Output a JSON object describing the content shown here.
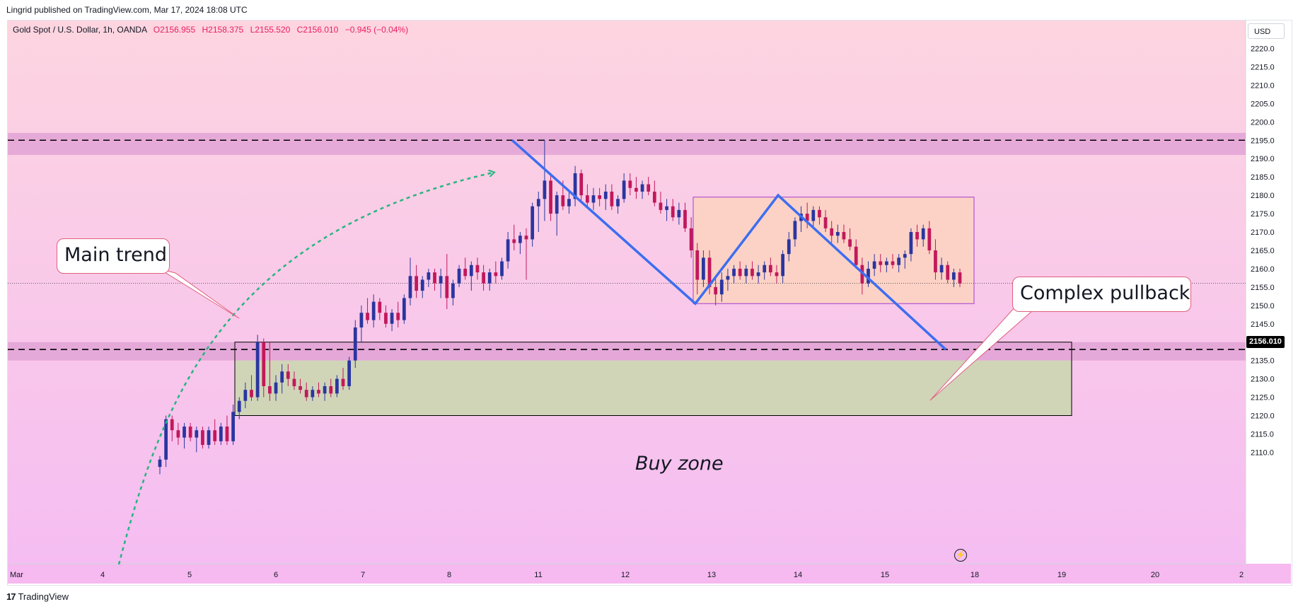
{
  "header": {
    "published_by": "Lingrid published on TradingView.com, Mar 17, 2024 18:08 UTC"
  },
  "legend": {
    "symbol": "Gold Spot / U.S. Dollar, 1h, OANDA",
    "open": "O2156.955",
    "high": "H2158.375",
    "low": "L2155.520",
    "close": "C2156.010",
    "change": "−0.945 (−0.04%)"
  },
  "price_scale": {
    "currency": "USD",
    "last_price_label": "2156.010"
  },
  "footer": {
    "brand": "TradingView"
  },
  "annotations": {
    "main_trend": "Main trend",
    "complex_pullback": "Complex pullback",
    "buy_zone": "Buy zone"
  },
  "colors": {
    "background_top": "#fdd5e0",
    "background_bottom": "#f5bdf2",
    "candle_up": "#2a36a0",
    "candle_down": "#c2185b",
    "resistance_band": "#e2a3d6",
    "buy_zone_fill": "#d0d5b8",
    "pullback_box_fill": "#fcd2c6",
    "pattern_line": "#3d6ef0",
    "trend_arc": "#26b580",
    "last_price_tag": "#000000"
  },
  "chart_data": {
    "type": "candlestick",
    "title": "Gold Spot / U.S. Dollar, 1h, OANDA",
    "y_axis": {
      "ticks": [
        2110,
        2115,
        2120,
        2125,
        2130,
        2135,
        2140,
        2145,
        2150,
        2155,
        2160,
        2165,
        2170,
        2175,
        2180,
        2185,
        2190,
        2195,
        2200,
        2205,
        2210,
        2215,
        2220
      ],
      "ylim": [
        2105,
        2225
      ],
      "position": "right"
    },
    "x_axis": {
      "ticks": [
        "Mar",
        "4",
        "5",
        "6",
        "7",
        "8",
        "11",
        "12",
        "13",
        "14",
        "15",
        "18",
        "19",
        "20",
        "2"
      ]
    },
    "last_price": 2156.01,
    "horizontal_levels": [
      {
        "price": 2195,
        "style": "dashed"
      },
      {
        "price": 2138,
        "style": "dashed"
      }
    ],
    "resistance_zone": {
      "low": 2191,
      "high": 2197
    },
    "support_zone": {
      "low": 2135,
      "high": 2140
    },
    "buy_zone": {
      "low": 2120,
      "high": 2140,
      "start": "Mar 5",
      "end": "Mar 19"
    },
    "pullback_box": {
      "low": 2150.5,
      "high": 2179.5,
      "start": "Mar 12",
      "end": "Mar 15"
    },
    "zigzag_points": [
      {
        "time": "Mar 8",
        "price": 2195
      },
      {
        "time": "Mar 12",
        "price": 2150.5
      },
      {
        "time": "Mar 13",
        "price": 2180
      },
      {
        "time": "Mar 15",
        "price": 2138
      }
    ],
    "candles": [
      {
        "o": 2106,
        "h": 2109,
        "l": 2104,
        "c": 2108
      },
      {
        "o": 2108,
        "h": 2120,
        "l": 2106,
        "c": 2119
      },
      {
        "o": 2119,
        "h": 2120,
        "l": 2113,
        "c": 2116
      },
      {
        "o": 2116,
        "h": 2118,
        "l": 2112,
        "c": 2114
      },
      {
        "o": 2114,
        "h": 2118,
        "l": 2111,
        "c": 2117
      },
      {
        "o": 2117,
        "h": 2118,
        "l": 2113,
        "c": 2114
      },
      {
        "o": 2114,
        "h": 2117,
        "l": 2110,
        "c": 2116
      },
      {
        "o": 2116,
        "h": 2117,
        "l": 2111,
        "c": 2112
      },
      {
        "o": 2112,
        "h": 2117,
        "l": 2111,
        "c": 2116
      },
      {
        "o": 2116,
        "h": 2119,
        "l": 2112,
        "c": 2113
      },
      {
        "o": 2113,
        "h": 2118,
        "l": 2112,
        "c": 2117
      },
      {
        "o": 2117,
        "h": 2120,
        "l": 2112,
        "c": 2113
      },
      {
        "o": 2113,
        "h": 2123,
        "l": 2112,
        "c": 2121
      },
      {
        "o": 2121,
        "h": 2125,
        "l": 2119,
        "c": 2124
      },
      {
        "o": 2124,
        "h": 2129,
        "l": 2122,
        "c": 2127
      },
      {
        "o": 2127,
        "h": 2131,
        "l": 2124,
        "c": 2125
      },
      {
        "o": 2125,
        "h": 2142,
        "l": 2124,
        "c": 2140
      },
      {
        "o": 2140,
        "h": 2141,
        "l": 2125,
        "c": 2128
      },
      {
        "o": 2128,
        "h": 2140,
        "l": 2124,
        "c": 2126
      },
      {
        "o": 2126,
        "h": 2131,
        "l": 2124,
        "c": 2129
      },
      {
        "o": 2129,
        "h": 2134,
        "l": 2126,
        "c": 2132
      },
      {
        "o": 2132,
        "h": 2134,
        "l": 2128,
        "c": 2130
      },
      {
        "o": 2130,
        "h": 2132,
        "l": 2127,
        "c": 2128
      },
      {
        "o": 2128,
        "h": 2130,
        "l": 2126,
        "c": 2127
      },
      {
        "o": 2127,
        "h": 2129,
        "l": 2124,
        "c": 2125
      },
      {
        "o": 2125,
        "h": 2128,
        "l": 2124,
        "c": 2127
      },
      {
        "o": 2127,
        "h": 2129,
        "l": 2125,
        "c": 2126
      },
      {
        "o": 2126,
        "h": 2129,
        "l": 2124,
        "c": 2128
      },
      {
        "o": 2128,
        "h": 2130,
        "l": 2125,
        "c": 2126
      },
      {
        "o": 2126,
        "h": 2131,
        "l": 2125,
        "c": 2130
      },
      {
        "o": 2130,
        "h": 2133,
        "l": 2127,
        "c": 2128
      },
      {
        "o": 2128,
        "h": 2136,
        "l": 2127,
        "c": 2135
      },
      {
        "o": 2135,
        "h": 2146,
        "l": 2133,
        "c": 2144
      },
      {
        "o": 2144,
        "h": 2150,
        "l": 2140,
        "c": 2148
      },
      {
        "o": 2148,
        "h": 2152,
        "l": 2145,
        "c": 2146
      },
      {
        "o": 2146,
        "h": 2153,
        "l": 2144,
        "c": 2151
      },
      {
        "o": 2151,
        "h": 2152,
        "l": 2146,
        "c": 2148
      },
      {
        "o": 2148,
        "h": 2150,
        "l": 2144,
        "c": 2145
      },
      {
        "o": 2145,
        "h": 2149,
        "l": 2143,
        "c": 2148
      },
      {
        "o": 2148,
        "h": 2151,
        "l": 2144,
        "c": 2146
      },
      {
        "o": 2146,
        "h": 2153,
        "l": 2145,
        "c": 2152
      },
      {
        "o": 2152,
        "h": 2163,
        "l": 2150,
        "c": 2158
      },
      {
        "o": 2158,
        "h": 2161,
        "l": 2152,
        "c": 2154
      },
      {
        "o": 2154,
        "h": 2158,
        "l": 2152,
        "c": 2157
      },
      {
        "o": 2157,
        "h": 2160,
        "l": 2155,
        "c": 2159
      },
      {
        "o": 2159,
        "h": 2160,
        "l": 2154,
        "c": 2156
      },
      {
        "o": 2156,
        "h": 2160,
        "l": 2152,
        "c": 2158
      },
      {
        "o": 2158,
        "h": 2164,
        "l": 2149,
        "c": 2152
      },
      {
        "o": 2152,
        "h": 2157,
        "l": 2150,
        "c": 2156
      },
      {
        "o": 2156,
        "h": 2161,
        "l": 2155,
        "c": 2160
      },
      {
        "o": 2160,
        "h": 2163,
        "l": 2157,
        "c": 2158
      },
      {
        "o": 2158,
        "h": 2162,
        "l": 2154,
        "c": 2161
      },
      {
        "o": 2161,
        "h": 2163,
        "l": 2157,
        "c": 2159
      },
      {
        "o": 2159,
        "h": 2161,
        "l": 2154,
        "c": 2156
      },
      {
        "o": 2156,
        "h": 2160,
        "l": 2154,
        "c": 2159
      },
      {
        "o": 2159,
        "h": 2162,
        "l": 2156,
        "c": 2158
      },
      {
        "o": 2158,
        "h": 2163,
        "l": 2157,
        "c": 2162
      },
      {
        "o": 2162,
        "h": 2170,
        "l": 2160,
        "c": 2168
      },
      {
        "o": 2168,
        "h": 2172,
        "l": 2165,
        "c": 2167
      },
      {
        "o": 2167,
        "h": 2170,
        "l": 2164,
        "c": 2169
      },
      {
        "o": 2169,
        "h": 2171,
        "l": 2157,
        "c": 2168
      },
      {
        "o": 2168,
        "h": 2178,
        "l": 2166,
        "c": 2177
      },
      {
        "o": 2177,
        "h": 2181,
        "l": 2170,
        "c": 2179
      },
      {
        "o": 2179,
        "h": 2195,
        "l": 2173,
        "c": 2184
      },
      {
        "o": 2184,
        "h": 2186,
        "l": 2173,
        "c": 2175
      },
      {
        "o": 2175,
        "h": 2181,
        "l": 2169,
        "c": 2180
      },
      {
        "o": 2180,
        "h": 2184,
        "l": 2176,
        "c": 2177
      },
      {
        "o": 2177,
        "h": 2181,
        "l": 2175,
        "c": 2179
      },
      {
        "o": 2179,
        "h": 2188,
        "l": 2177,
        "c": 2186
      },
      {
        "o": 2186,
        "h": 2187,
        "l": 2178,
        "c": 2180
      },
      {
        "o": 2180,
        "h": 2183,
        "l": 2177,
        "c": 2178
      },
      {
        "o": 2178,
        "h": 2182,
        "l": 2176,
        "c": 2180
      },
      {
        "o": 2180,
        "h": 2182,
        "l": 2177,
        "c": 2179
      },
      {
        "o": 2179,
        "h": 2183,
        "l": 2176,
        "c": 2181
      },
      {
        "o": 2181,
        "h": 2183,
        "l": 2176,
        "c": 2177
      },
      {
        "o": 2177,
        "h": 2180,
        "l": 2175,
        "c": 2179
      },
      {
        "o": 2179,
        "h": 2186,
        "l": 2178,
        "c": 2184
      },
      {
        "o": 2184,
        "h": 2186,
        "l": 2180,
        "c": 2182
      },
      {
        "o": 2182,
        "h": 2185,
        "l": 2179,
        "c": 2181
      },
      {
        "o": 2181,
        "h": 2184,
        "l": 2179,
        "c": 2183
      },
      {
        "o": 2183,
        "h": 2185,
        "l": 2180,
        "c": 2181
      },
      {
        "o": 2181,
        "h": 2184,
        "l": 2177,
        "c": 2178
      },
      {
        "o": 2178,
        "h": 2181,
        "l": 2175,
        "c": 2176
      },
      {
        "o": 2176,
        "h": 2179,
        "l": 2173,
        "c": 2177
      },
      {
        "o": 2177,
        "h": 2179,
        "l": 2173,
        "c": 2174
      },
      {
        "o": 2174,
        "h": 2178,
        "l": 2172,
        "c": 2176
      },
      {
        "o": 2176,
        "h": 2178,
        "l": 2170,
        "c": 2171
      },
      {
        "o": 2171,
        "h": 2174,
        "l": 2163,
        "c": 2165
      },
      {
        "o": 2165,
        "h": 2167,
        "l": 2153,
        "c": 2157
      },
      {
        "o": 2157,
        "h": 2165,
        "l": 2155,
        "c": 2163
      },
      {
        "o": 2163,
        "h": 2165,
        "l": 2153,
        "c": 2155
      },
      {
        "o": 2155,
        "h": 2158,
        "l": 2150,
        "c": 2153
      },
      {
        "o": 2153,
        "h": 2159,
        "l": 2151,
        "c": 2157
      },
      {
        "o": 2157,
        "h": 2160,
        "l": 2154,
        "c": 2158
      },
      {
        "o": 2158,
        "h": 2161,
        "l": 2156,
        "c": 2160
      },
      {
        "o": 2160,
        "h": 2162,
        "l": 2157,
        "c": 2158
      },
      {
        "o": 2158,
        "h": 2161,
        "l": 2156,
        "c": 2160
      },
      {
        "o": 2160,
        "h": 2162,
        "l": 2157,
        "c": 2158
      },
      {
        "o": 2158,
        "h": 2161,
        "l": 2156,
        "c": 2159
      },
      {
        "o": 2159,
        "h": 2162,
        "l": 2157,
        "c": 2161
      },
      {
        "o": 2161,
        "h": 2163,
        "l": 2158,
        "c": 2159
      },
      {
        "o": 2159,
        "h": 2161,
        "l": 2156,
        "c": 2158
      },
      {
        "o": 2158,
        "h": 2165,
        "l": 2156,
        "c": 2164
      },
      {
        "o": 2164,
        "h": 2170,
        "l": 2162,
        "c": 2168
      },
      {
        "o": 2168,
        "h": 2174,
        "l": 2166,
        "c": 2173
      },
      {
        "o": 2173,
        "h": 2177,
        "l": 2170,
        "c": 2175
      },
      {
        "o": 2175,
        "h": 2178,
        "l": 2171,
        "c": 2173
      },
      {
        "o": 2173,
        "h": 2177,
        "l": 2171,
        "c": 2176
      },
      {
        "o": 2176,
        "h": 2177,
        "l": 2172,
        "c": 2174
      },
      {
        "o": 2174,
        "h": 2176,
        "l": 2170,
        "c": 2171
      },
      {
        "o": 2171,
        "h": 2173,
        "l": 2167,
        "c": 2169
      },
      {
        "o": 2169,
        "h": 2172,
        "l": 2167,
        "c": 2170
      },
      {
        "o": 2170,
        "h": 2172,
        "l": 2167,
        "c": 2168
      },
      {
        "o": 2168,
        "h": 2171,
        "l": 2165,
        "c": 2166
      },
      {
        "o": 2166,
        "h": 2168,
        "l": 2160,
        "c": 2161
      },
      {
        "o": 2161,
        "h": 2163,
        "l": 2153,
        "c": 2156
      },
      {
        "o": 2156,
        "h": 2162,
        "l": 2155,
        "c": 2160
      },
      {
        "o": 2160,
        "h": 2164,
        "l": 2158,
        "c": 2162
      },
      {
        "o": 2162,
        "h": 2164,
        "l": 2159,
        "c": 2161
      },
      {
        "o": 2161,
        "h": 2163,
        "l": 2159,
        "c": 2162
      },
      {
        "o": 2162,
        "h": 2164,
        "l": 2160,
        "c": 2161
      },
      {
        "o": 2161,
        "h": 2164,
        "l": 2159,
        "c": 2163
      },
      {
        "o": 2163,
        "h": 2165,
        "l": 2160,
        "c": 2164
      },
      {
        "o": 2164,
        "h": 2171,
        "l": 2162,
        "c": 2170
      },
      {
        "o": 2170,
        "h": 2172,
        "l": 2166,
        "c": 2168
      },
      {
        "o": 2168,
        "h": 2172,
        "l": 2166,
        "c": 2171
      },
      {
        "o": 2171,
        "h": 2173,
        "l": 2164,
        "c": 2165
      },
      {
        "o": 2165,
        "h": 2168,
        "l": 2157,
        "c": 2159
      },
      {
        "o": 2159,
        "h": 2163,
        "l": 2157,
        "c": 2161
      },
      {
        "o": 2161,
        "h": 2162,
        "l": 2156,
        "c": 2157
      },
      {
        "o": 2157,
        "h": 2160,
        "l": 2155,
        "c": 2159
      },
      {
        "o": 2159,
        "h": 2160,
        "l": 2155,
        "c": 2156
      }
    ]
  }
}
